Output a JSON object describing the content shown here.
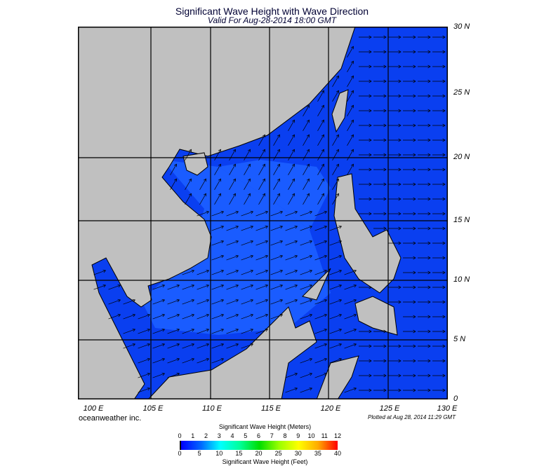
{
  "title": "Significant Wave Height with Wave Direction",
  "subtitle": "Valid For Aug-28-2014 18:00 GMT",
  "lat_labels": [
    "30 N",
    "25 N",
    "20 N",
    "15 N",
    "10 N",
    "5 N",
    "0"
  ],
  "lon_labels": [
    "100 E",
    "105 E",
    "110 E",
    "115 E",
    "120 E",
    "125 E",
    "130 E"
  ],
  "credit": "oceanweather inc.",
  "plotted": "Plotted at Aug 28, 2014 11:29 GMT",
  "colorbar": {
    "meters_label": "Significant Wave Height (Meters)",
    "feet_label": "Significant Wave Height (Feet)",
    "meters_ticks": [
      "0",
      "1",
      "2",
      "3",
      "4",
      "5",
      "6",
      "7",
      "8",
      "9",
      "10",
      "11",
      "12"
    ],
    "feet_ticks": [
      "0",
      "5",
      "10",
      "15",
      "20",
      "25",
      "30",
      "35",
      "40"
    ],
    "colors": [
      "#000000",
      "#0000ff",
      "#0066ff",
      "#00ffff",
      "#00ff99",
      "#00dd00",
      "#99ff00",
      "#ffff00",
      "#ffaa00",
      "#ff0000"
    ]
  },
  "colors": {
    "land": "#c0c0c0",
    "sea_low": "#0a3ff0",
    "sea_mid": "#1a5cff",
    "sea_light": "#2a8aff"
  }
}
